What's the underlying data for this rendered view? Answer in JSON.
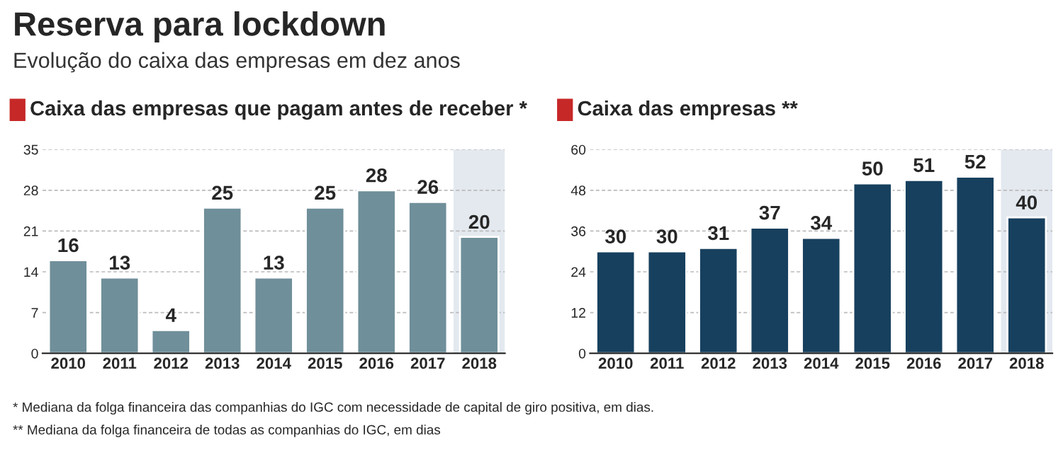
{
  "chart_data": [
    {
      "type": "other",
      "title": "Reserva para lockdown",
      "subtitle": "Evolução do caixa das empresas em dez anos",
      "annotations": [
        "* Mediana da folga financeira das companhias do IGC com necessidade de capital de giro positiva, em dias.",
        "** Mediana da folga financeira de todas as companhias do IGC, em dias"
      ]
    },
    {
      "type": "bar",
      "title": "Caixa das empresas que pagam antes de receber *",
      "categories": [
        "2010",
        "2011",
        "2012",
        "2013",
        "2014",
        "2015",
        "2016",
        "2017",
        "2018"
      ],
      "values": [
        16,
        13,
        4,
        25,
        13,
        25,
        28,
        26,
        20
      ],
      "color": "#6f8f9a",
      "ylim": [
        0,
        35
      ],
      "yticks": [
        0,
        7,
        14,
        21,
        28,
        35
      ],
      "grid": "y",
      "data_labels": true,
      "bands": [
        {
          "axis": "x",
          "from": "2018",
          "to": "2018",
          "color": "#e3e9ef"
        }
      ]
    },
    {
      "type": "bar",
      "title": "Caixa das empresas **",
      "categories": [
        "2010",
        "2011",
        "2012",
        "2013",
        "2014",
        "2015",
        "2016",
        "2017",
        "2018"
      ],
      "values": [
        30,
        30,
        31,
        37,
        34,
        50,
        51,
        52,
        40
      ],
      "color": "#17405e",
      "ylim": [
        0,
        60
      ],
      "yticks": [
        0,
        12,
        24,
        36,
        48,
        60
      ],
      "grid": "y",
      "data_labels": true,
      "bands": [
        {
          "axis": "x",
          "from": "2018",
          "to": "2018",
          "color": "#e3e9ef"
        }
      ]
    }
  ]
}
